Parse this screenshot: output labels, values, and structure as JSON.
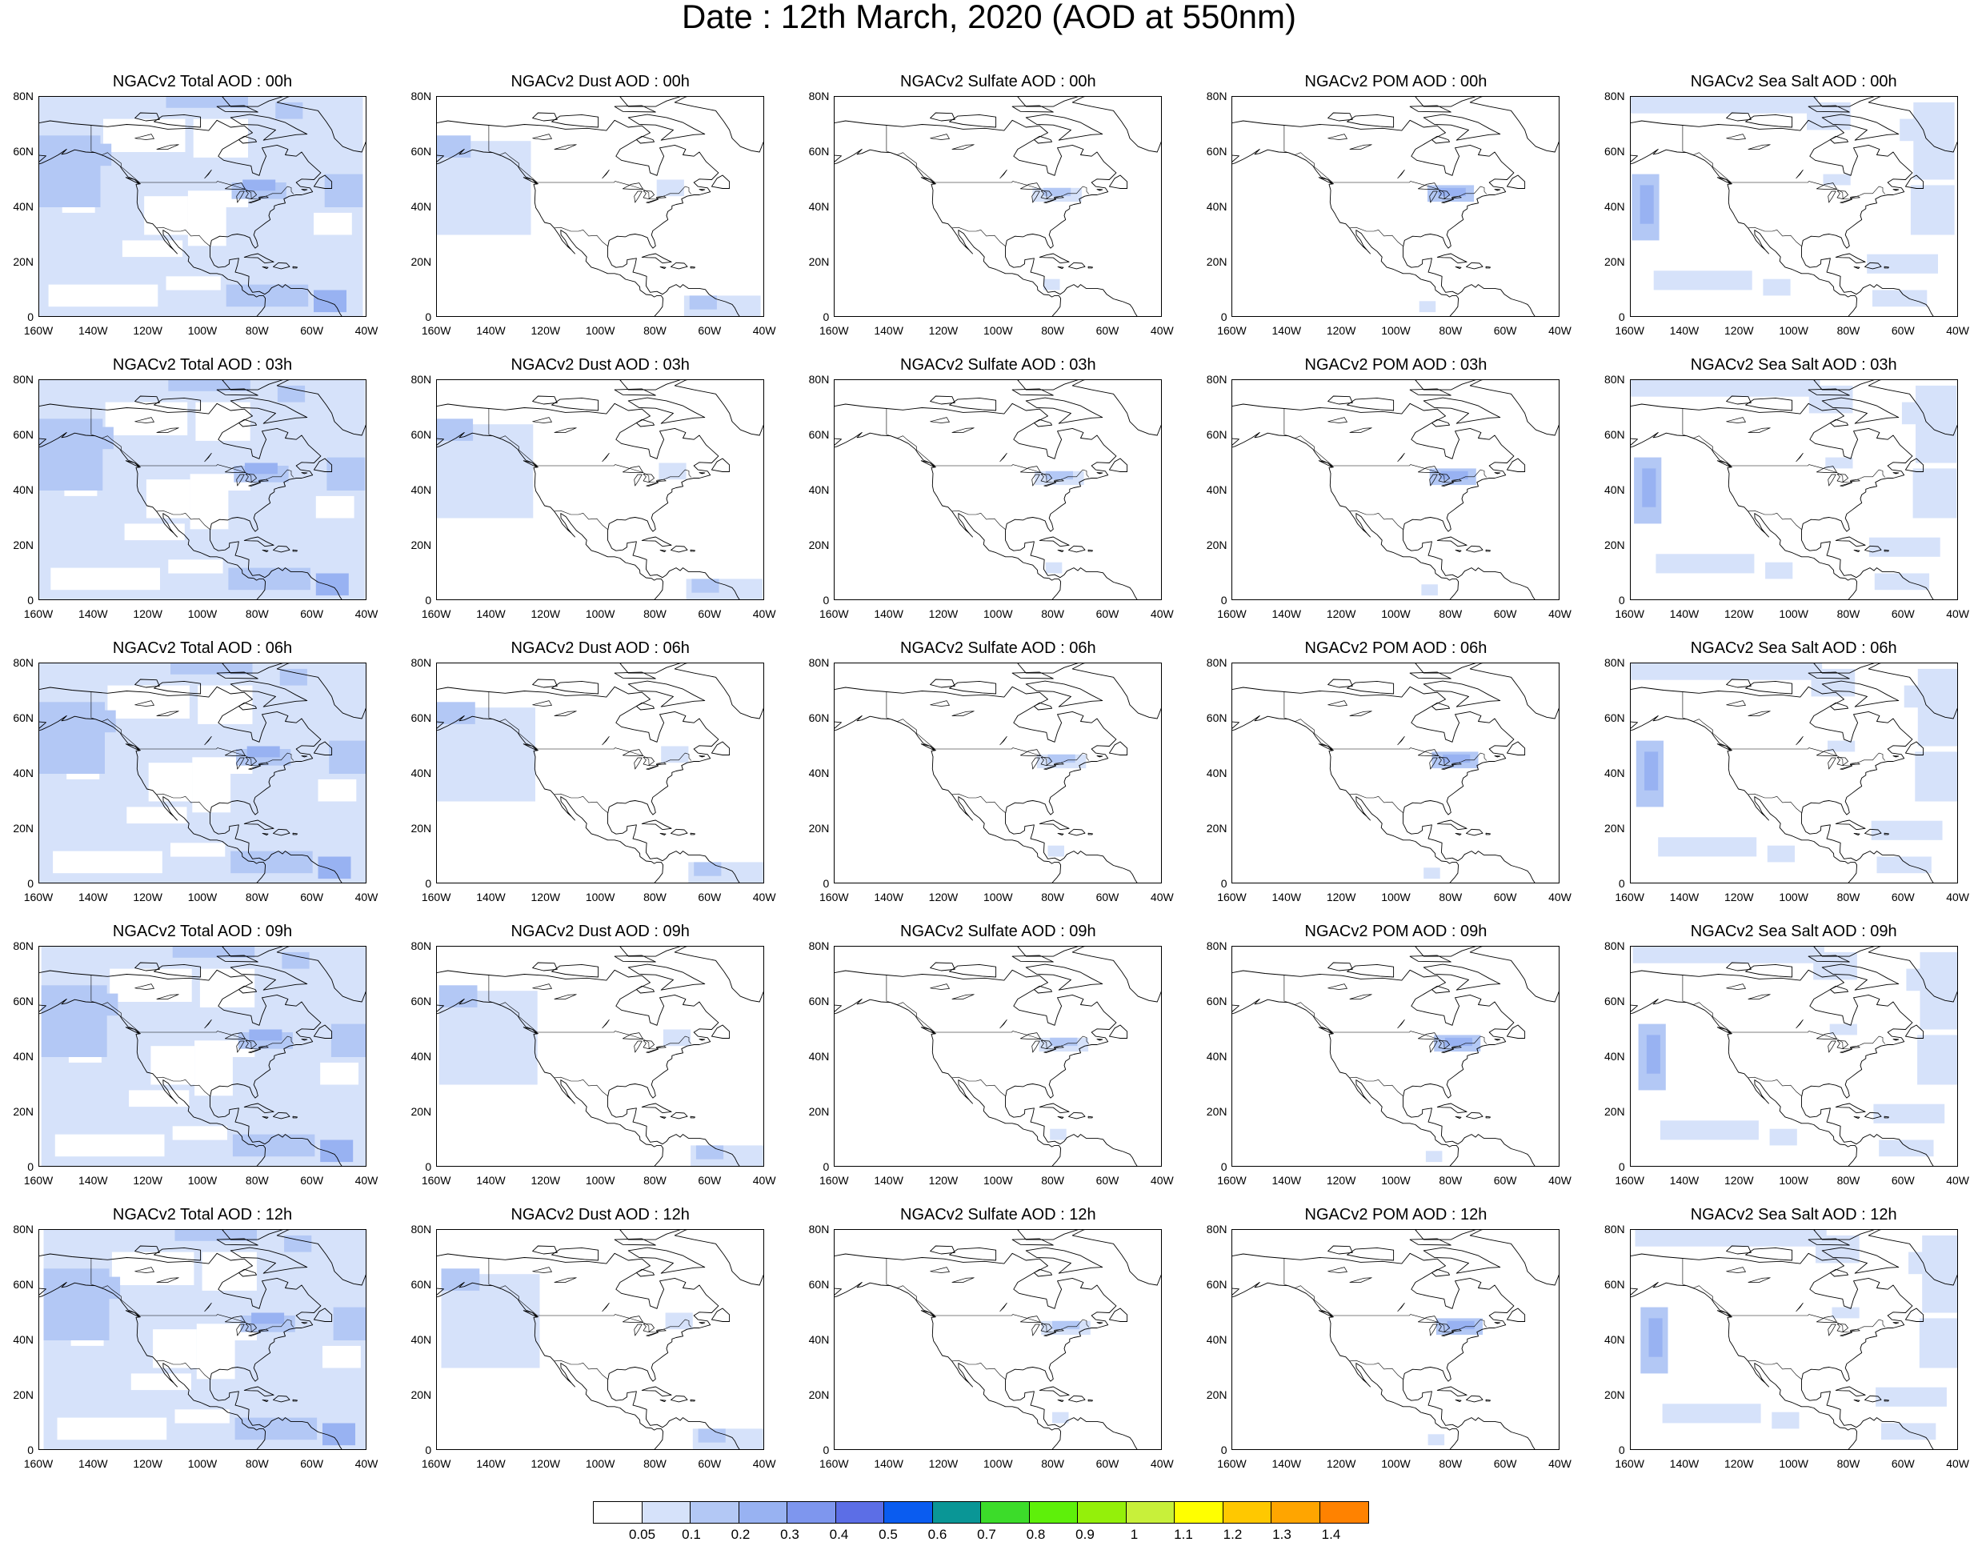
{
  "title": "Date : 12th March, 2020 (AOD at 550nm)",
  "rows": [
    [
      "NGACv2 Total AOD : 00h",
      "NGACv2 Dust AOD : 00h",
      "NGACv2 Sulfate AOD : 00h",
      "NGACv2 POM AOD : 00h",
      "NGACv2 Sea Salt AOD : 00h"
    ],
    [
      "NGACv2 Total AOD : 03h",
      "NGACv2 Dust AOD : 03h",
      "NGACv2 Sulfate AOD : 03h",
      "NGACv2 POM AOD : 03h",
      "NGACv2 Sea Salt AOD : 03h"
    ],
    [
      "NGACv2 Total AOD : 06h",
      "NGACv2 Dust AOD : 06h",
      "NGACv2 Sulfate AOD : 06h",
      "NGACv2 POM AOD : 06h",
      "NGACv2 Sea Salt AOD : 06h"
    ],
    [
      "NGACv2 Total AOD : 09h",
      "NGACv2 Dust AOD : 09h",
      "NGACv2 Sulfate AOD : 09h",
      "NGACv2 POM AOD : 09h",
      "NGACv2 Sea Salt  AOD : 09h"
    ],
    [
      "NGACv2 Total AOD  : 12h",
      "NGACv2 Dust AOD : 12h",
      "NGACv2 Sulfate AOD : 12h",
      "NGACv2 POM  AOD : 12h",
      "NGACv2 Sea Salt  AOD : 12h"
    ]
  ],
  "lat_labels": [
    "80N",
    "60N",
    "40N",
    "20N",
    "0"
  ],
  "lon_labels": [
    "160W",
    "140W",
    "120W",
    "100W",
    "80W",
    "60W",
    "40W"
  ],
  "colorbar": {
    "labels": [
      "0.05",
      "0.1",
      "0.2",
      "0.3",
      "0.4",
      "0.5",
      "0.6",
      "0.7",
      "0.8",
      "0.9",
      "1",
      "1.1",
      "1.2",
      "1.3",
      "1.4"
    ],
    "colors": [
      "#ffffff",
      "#d6e2fa",
      "#b3c8f5",
      "#98b2f2",
      "#7e96ee",
      "#5c6ee6",
      "#0a5cf0",
      "#0a9696",
      "#3cdc2a",
      "#5ef00a",
      "#94f00a",
      "#c8f03a",
      "#ffff00",
      "#ffc800",
      "#ffa500",
      "#ff8200",
      "#ff6414",
      "#ff1e0a"
    ]
  },
  "fields": {
    "total": "broad light-blue (0.05–0.2) over most of the domain; higher (0.2–0.3) over Pacific coast, Great Lakes and Caribbean",
    "dust": "light blue (0.05–0.1) over northeast Pacific off Alaska/BC and eastern Caribbean",
    "sulfate": "light blue plume over Great Lakes / St. Lawrence",
    "pom": "light-to-medium blue plume over Great Lakes / US Northeast",
    "seasalt": "patchy light blue over oceans, Pacific coast, Hudson Bay and Atlantic"
  }
}
